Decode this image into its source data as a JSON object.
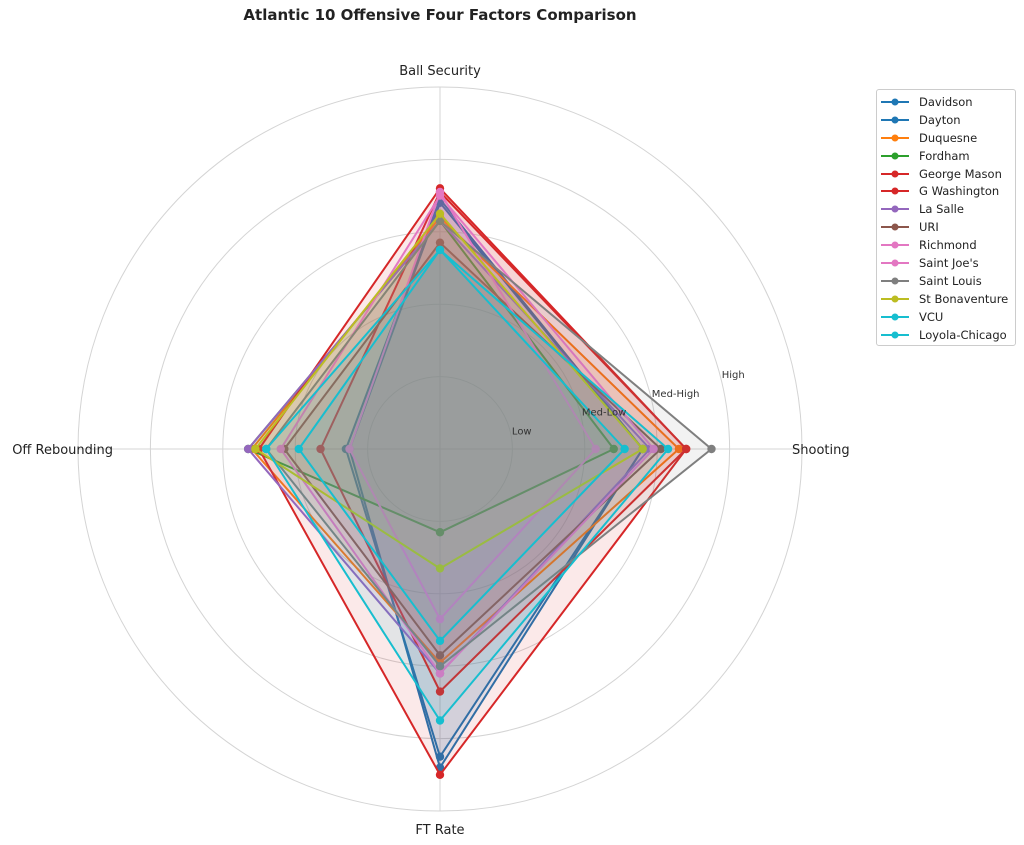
{
  "chart_data": {
    "type": "radar",
    "title": "Atlantic 10 Offensive Four Factors Comparison",
    "axes": [
      "Ball Security",
      "Shooting",
      "FT Rate",
      "Off Rebounding"
    ],
    "ring_labels": [
      "Low",
      "Med-Low",
      "Med-High",
      "High"
    ],
    "rmax": 5,
    "grid": true,
    "legend_position": "top-right (outside)",
    "series": [
      {
        "name": "Davidson",
        "color": "#1f77b4",
        "values": [
          3.4,
          2.8,
          4.4,
          1.25
        ]
      },
      {
        "name": "Dayton",
        "color": "#1f77b4",
        "values": [
          3.45,
          2.8,
          4.25,
          1.3
        ]
      },
      {
        "name": "Duquesne",
        "color": "#ff7f0e",
        "values": [
          3.2,
          3.3,
          2.95,
          2.6
        ]
      },
      {
        "name": "Fordham",
        "color": "#2ca02c",
        "values": [
          3.15,
          2.4,
          1.15,
          2.65
        ]
      },
      {
        "name": "George Mason",
        "color": "#d62728",
        "values": [
          3.6,
          3.4,
          4.5,
          2.5
        ]
      },
      {
        "name": "G Washington",
        "color": "#d62728",
        "values": [
          3.55,
          3.4,
          3.35,
          1.65
        ]
      },
      {
        "name": "La Salle",
        "color": "#9467bd",
        "values": [
          3.15,
          2.9,
          3.1,
          2.65
        ]
      },
      {
        "name": "URI",
        "color": "#8c564b",
        "values": [
          2.85,
          3.05,
          2.85,
          2.15
        ]
      },
      {
        "name": "Richmond",
        "color": "#e377c2",
        "values": [
          3.55,
          2.15,
          2.35,
          1.25
        ]
      },
      {
        "name": "Saint Joe's",
        "color": "#e377c2",
        "values": [
          3.5,
          2.95,
          3.1,
          2.2
        ]
      },
      {
        "name": "Saint Louis",
        "color": "#7f7f7f",
        "values": [
          3.15,
          3.75,
          3.0,
          2.4
        ]
      },
      {
        "name": "St Bonaventure",
        "color": "#bcbd22",
        "values": [
          3.25,
          2.8,
          1.65,
          2.55
        ]
      },
      {
        "name": "VCU",
        "color": "#17becf",
        "values": [
          2.75,
          3.15,
          3.75,
          2.4
        ]
      },
      {
        "name": "Loyola-Chicago",
        "color": "#17becf",
        "values": [
          2.75,
          2.55,
          2.65,
          1.95
        ]
      }
    ]
  }
}
